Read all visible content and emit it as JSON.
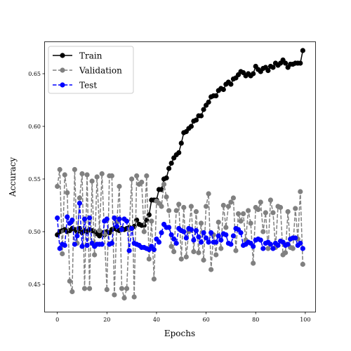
{
  "chart_data": {
    "type": "line",
    "xlabel": "Epochs",
    "ylabel": "Accuracy",
    "xlim": [
      -5,
      104
    ],
    "ylim": [
      0.424,
      0.68
    ],
    "xticks": [
      0,
      20,
      40,
      60,
      80,
      100
    ],
    "yticks": [
      0.45,
      0.5,
      0.55,
      0.6,
      0.65
    ],
    "ytick_labels": [
      "0.45",
      "0.50",
      "0.55",
      "0.60",
      "0.65"
    ],
    "grid": false,
    "legend_position": "upper-left",
    "series": [
      {
        "name": "Train",
        "color": "#000000",
        "linestyle": "solid",
        "marker": "circle",
        "x": [
          0,
          1,
          2,
          3,
          4,
          5,
          6,
          7,
          8,
          9,
          10,
          11,
          12,
          13,
          14,
          15,
          16,
          17,
          18,
          19,
          20,
          21,
          22,
          23,
          24,
          25,
          26,
          27,
          28,
          29,
          30,
          31,
          32,
          33,
          34,
          35,
          36,
          37,
          38,
          39,
          40,
          41,
          42,
          43,
          44,
          45,
          46,
          47,
          48,
          49,
          50,
          51,
          52,
          53,
          54,
          55,
          56,
          57,
          58,
          59,
          60,
          61,
          62,
          63,
          64,
          65,
          66,
          67,
          68,
          69,
          70,
          71,
          72,
          73,
          74,
          75,
          76,
          77,
          78,
          79,
          80,
          81,
          82,
          83,
          84,
          85,
          86,
          87,
          88,
          89,
          90,
          91,
          92,
          93,
          94,
          95,
          96,
          97,
          98,
          99
        ],
        "values": [
          0.497,
          0.5,
          0.501,
          0.502,
          0.5,
          0.501,
          0.503,
          0.502,
          0.5,
          0.503,
          0.499,
          0.501,
          0.5,
          0.502,
          0.501,
          0.5,
          0.498,
          0.496,
          0.499,
          0.497,
          0.5,
          0.499,
          0.502,
          0.503,
          0.502,
          0.501,
          0.503,
          0.502,
          0.503,
          0.504,
          0.503,
          0.505,
          0.511,
          0.507,
          0.506,
          0.506,
          0.511,
          0.516,
          0.53,
          0.53,
          0.53,
          0.54,
          0.54,
          0.55,
          0.551,
          0.56,
          0.565,
          0.57,
          0.573,
          0.575,
          0.584,
          0.594,
          0.595,
          0.598,
          0.6,
          0.605,
          0.606,
          0.61,
          0.61,
          0.616,
          0.62,
          0.623,
          0.628,
          0.629,
          0.629,
          0.634,
          0.636,
          0.635,
          0.64,
          0.642,
          0.64,
          0.645,
          0.646,
          0.649,
          0.652,
          0.651,
          0.648,
          0.65,
          0.648,
          0.65,
          0.657,
          0.654,
          0.652,
          0.655,
          0.656,
          0.653,
          0.657,
          0.656,
          0.66,
          0.658,
          0.66,
          0.663,
          0.66,
          0.656,
          0.659,
          0.659,
          0.66,
          0.66,
          0.66,
          0.672
        ]
      },
      {
        "name": "Validation",
        "color": "#808080",
        "linestyle": "dashed",
        "marker": "circle",
        "x": [
          0,
          1,
          2,
          3,
          4,
          5,
          6,
          7,
          8,
          9,
          10,
          11,
          12,
          13,
          14,
          15,
          16,
          17,
          18,
          19,
          20,
          21,
          22,
          23,
          24,
          25,
          26,
          27,
          28,
          29,
          30,
          31,
          32,
          33,
          34,
          35,
          36,
          37,
          38,
          39,
          40,
          41,
          42,
          43,
          44,
          45,
          46,
          47,
          48,
          49,
          50,
          51,
          52,
          53,
          54,
          55,
          56,
          57,
          58,
          59,
          60,
          61,
          62,
          63,
          64,
          65,
          66,
          67,
          68,
          69,
          70,
          71,
          72,
          73,
          74,
          75,
          76,
          77,
          78,
          79,
          80,
          81,
          82,
          83,
          84,
          85,
          86,
          87,
          88,
          89,
          90,
          91,
          92,
          93,
          94,
          95,
          96,
          97,
          98,
          99
        ],
        "values": [
          0.543,
          0.559,
          0.479,
          0.554,
          0.537,
          0.453,
          0.443,
          0.559,
          0.489,
          0.532,
          0.555,
          0.446,
          0.554,
          0.446,
          0.548,
          0.478,
          0.552,
          0.501,
          0.555,
          0.498,
          0.445,
          0.553,
          0.553,
          0.44,
          0.509,
          0.543,
          0.446,
          0.437,
          0.446,
          0.502,
          0.55,
          0.438,
          0.553,
          0.545,
          0.547,
          0.5,
          0.553,
          0.474,
          0.51,
          0.455,
          0.529,
          0.527,
          0.524,
          0.545,
          0.533,
          0.52,
          0.486,
          0.481,
          0.52,
          0.526,
          0.474,
          0.523,
          0.476,
          0.5,
          0.524,
          0.481,
          0.519,
          0.48,
          0.508,
          0.473,
          0.524,
          0.536,
          0.464,
          0.497,
          0.478,
          0.509,
          0.484,
          0.525,
          0.504,
          0.524,
          0.528,
          0.532,
          0.482,
          0.517,
          0.51,
          0.517,
          0.492,
          0.52,
          0.508,
          0.47,
          0.523,
          0.521,
          0.528,
          0.5,
          0.518,
          0.484,
          0.53,
          0.518,
          0.485,
          0.524,
          0.523,
          0.478,
          0.48,
          0.519,
          0.485,
          0.484,
          0.522,
          0.493,
          0.538,
          0.469
        ]
      },
      {
        "name": "Test",
        "color": "#0000ff",
        "linestyle": "dashed",
        "marker": "circle",
        "x": [
          0,
          1,
          2,
          3,
          4,
          5,
          6,
          7,
          8,
          9,
          10,
          11,
          12,
          13,
          14,
          15,
          16,
          17,
          18,
          19,
          20,
          21,
          22,
          23,
          24,
          25,
          26,
          27,
          28,
          29,
          30,
          31,
          32,
          33,
          34,
          35,
          36,
          37,
          38,
          39,
          40,
          41,
          42,
          43,
          44,
          45,
          46,
          47,
          48,
          49,
          50,
          51,
          52,
          53,
          54,
          55,
          56,
          57,
          58,
          59,
          60,
          61,
          62,
          63,
          64,
          65,
          66,
          67,
          68,
          69,
          70,
          71,
          72,
          73,
          74,
          75,
          76,
          77,
          78,
          79,
          80,
          81,
          82,
          83,
          84,
          85,
          86,
          87,
          88,
          89,
          90,
          91,
          92,
          93,
          94,
          95,
          96,
          97,
          98,
          99
        ],
        "values": [
          0.513,
          0.484,
          0.488,
          0.487,
          0.514,
          0.508,
          0.511,
          0.488,
          0.496,
          0.527,
          0.486,
          0.512,
          0.487,
          0.513,
          0.489,
          0.486,
          0.488,
          0.488,
          0.488,
          0.51,
          0.512,
          0.488,
          0.489,
          0.513,
          0.505,
          0.512,
          0.502,
          0.512,
          0.51,
          0.482,
          0.503,
          0.489,
          0.488,
          0.487,
          0.485,
          0.485,
          0.484,
          0.483,
          0.486,
          0.483,
          0.493,
          0.49,
          0.499,
          0.507,
          0.504,
          0.504,
          0.497,
          0.493,
          0.489,
          0.503,
          0.501,
          0.5,
          0.494,
          0.503,
          0.502,
          0.492,
          0.501,
          0.495,
          0.49,
          0.499,
          0.494,
          0.49,
          0.499,
          0.49,
          0.49,
          0.496,
          0.492,
          0.498,
          0.497,
          0.489,
          0.488,
          0.496,
          0.503,
          0.502,
          0.499,
          0.487,
          0.488,
          0.49,
          0.489,
          0.486,
          0.492,
          0.493,
          0.492,
          0.484,
          0.489,
          0.49,
          0.488,
          0.484,
          0.489,
          0.487,
          0.491,
          0.49,
          0.487,
          0.488,
          0.493,
          0.494,
          0.494,
          0.487,
          0.489,
          0.484
        ]
      }
    ]
  }
}
